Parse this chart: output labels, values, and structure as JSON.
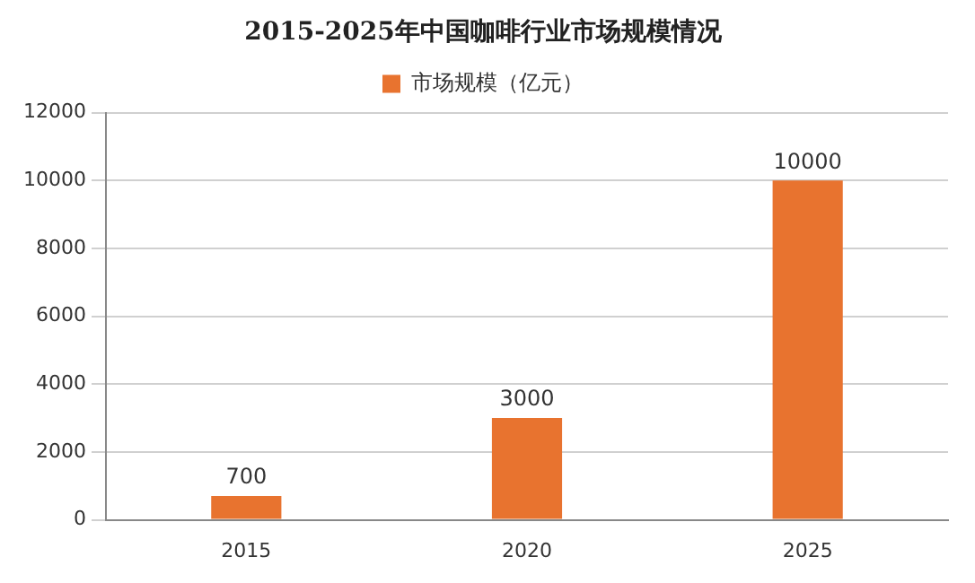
{
  "chart_data": {
    "type": "bar",
    "title": "2015-2025年中国咖啡行业市场规模情况",
    "categories": [
      "2015",
      "2020",
      "2025"
    ],
    "series": [
      {
        "name": "市场规模（亿元）",
        "color": "#e8732f",
        "values": [
          700,
          3000,
          10000
        ]
      }
    ],
    "ylim": [
      0,
      12000
    ],
    "yticks": [
      0,
      2000,
      4000,
      6000,
      8000,
      10000,
      12000
    ],
    "grid": "y",
    "legend": "top",
    "data_labels": true
  }
}
